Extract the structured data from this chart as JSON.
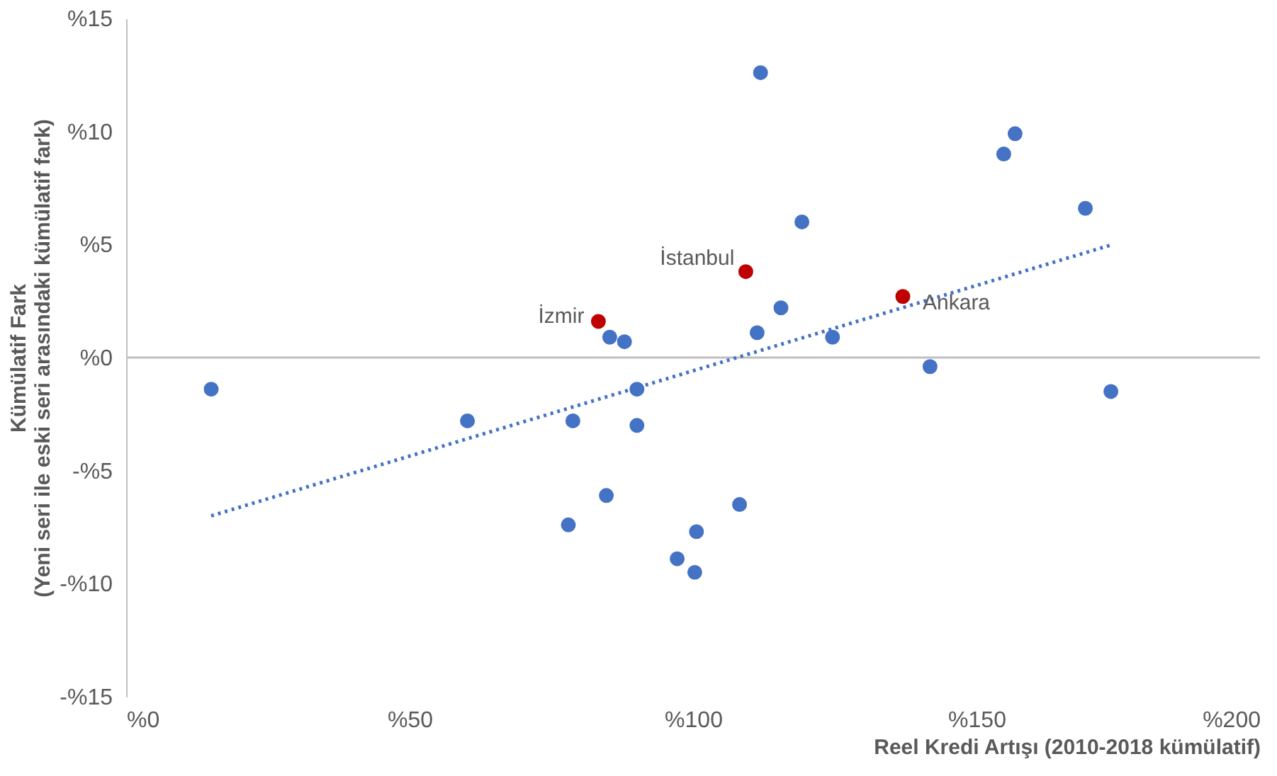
{
  "chart_data": {
    "type": "scatter",
    "xlabel": "Reel Kredi Artışı (2010-2018 kümülatif)",
    "ylabel": "Kümülatif Fark\n(Yeni seri ile eski seri arasındaki kümülatif fark)",
    "xlim": [
      0,
      200
    ],
    "ylim": [
      -15,
      15
    ],
    "xticks": [
      {
        "value": 0,
        "label": "%0"
      },
      {
        "value": 50,
        "label": "%50"
      },
      {
        "value": 100,
        "label": "%100"
      },
      {
        "value": 150,
        "label": "%150"
      },
      {
        "value": 200,
        "label": "%200"
      }
    ],
    "yticks": [
      {
        "value": -15,
        "label": "-%15"
      },
      {
        "value": -10,
        "label": "-%10"
      },
      {
        "value": -5,
        "label": "-%5"
      },
      {
        "value": 0,
        "label": "%0"
      },
      {
        "value": 5,
        "label": "%5"
      },
      {
        "value": 10,
        "label": "%10"
      },
      {
        "value": 15,
        "label": "%15"
      }
    ],
    "grid": false,
    "legend": false,
    "marker": "circle",
    "ref_lines": [
      {
        "axis": "y",
        "value": 0,
        "color": "#bfbfbf"
      }
    ],
    "series": [
      {
        "color": "#4472c4",
        "x": [
          15.0,
          60.2,
          78.8,
          78.0,
          84.7,
          85.3,
          87.9,
          90.1,
          90.1,
          97.2,
          100.3,
          100.6,
          108.2,
          111.3,
          111.9,
          115.5,
          119.2,
          124.6,
          141.8,
          154.8,
          156.8,
          169.2,
          173.7
        ],
        "values": [
          -1.4,
          -2.8,
          -2.8,
          -7.4,
          -6.1,
          0.9,
          0.7,
          -1.4,
          -3.0,
          -8.9,
          -9.5,
          -7.7,
          -6.5,
          1.1,
          12.6,
          2.2,
          6.0,
          0.9,
          -0.4,
          9.0,
          9.9,
          6.6,
          -1.5
        ]
      },
      {
        "color": "#c00000",
        "x": [
          83.3,
          109.3,
          137.0
        ],
        "values": [
          1.6,
          3.8,
          2.7
        ]
      },
      {
        "type": "line",
        "color": "#4472c4",
        "line_style": "dotted",
        "marker": "none",
        "x": [
          15.0,
          174.0
        ],
        "values": [
          -7.0,
          5.0
        ]
      }
    ],
    "annotations": [
      {
        "text": "İzmir",
        "x": 83.3,
        "y": 1.6
      },
      {
        "text": "İstanbul",
        "x": 109.3,
        "y": 3.8
      },
      {
        "text": "Ankara",
        "x": 137.0,
        "y": 2.7
      }
    ]
  }
}
